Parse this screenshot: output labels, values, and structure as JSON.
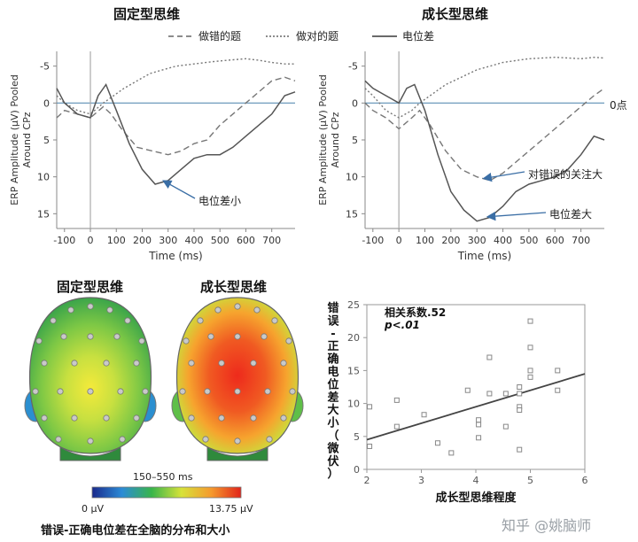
{
  "titles": {
    "left_erp": "固定型思维",
    "right_erp": "成长型思维",
    "left_head": "固定型思维",
    "right_head": "成长型思维"
  },
  "legend": [
    {
      "label": "做错的题",
      "style": "dash"
    },
    {
      "label": "做对的题",
      "style": "dot"
    },
    {
      "label": "电位差",
      "style": "solid"
    }
  ],
  "annotations": {
    "zero_point": "0点",
    "left_small": "电位差小",
    "right_attention": "对错误的关注大",
    "right_large": "电位差大"
  },
  "head_range": {
    "window": "150–550 ms",
    "min": "0 μV",
    "max": "13.75 μV"
  },
  "head_caption": "错误-正确电位差在全脑的分布和大小",
  "scatter_stats": {
    "line1": "相关系数.52",
    "line2": "p<.01"
  },
  "watermark": "知乎 @姚脑师",
  "colors": {
    "zero_line": "#5b8fb5",
    "axis": "#888888",
    "curve": "#666666",
    "arrow": "#3a6ea5"
  },
  "chart_data": [
    {
      "type": "line",
      "title": "固定型思维",
      "xlabel": "Time (ms)",
      "ylabel": "ERP Amplitude (μV) Pooled Around CPz",
      "xlim": [
        -130,
        790
      ],
      "ylim": [
        -7,
        17
      ],
      "y_inverted": true,
      "x_ticks": [
        -100,
        0,
        100,
        200,
        300,
        400,
        500,
        600,
        700
      ],
      "y_ticks": [
        -5,
        0,
        5,
        10,
        15
      ],
      "series": [
        {
          "name": "做错的题",
          "style": "dash",
          "x": [
            -130,
            -100,
            -50,
            0,
            50,
            80,
            120,
            180,
            240,
            300,
            350,
            400,
            450,
            500,
            550,
            600,
            650,
            700,
            750,
            790
          ],
          "y": [
            2,
            1,
            1.5,
            2,
            0.5,
            1.5,
            3.5,
            6,
            6.5,
            7,
            6.5,
            5.5,
            5,
            3,
            1.5,
            0,
            -1.5,
            -3,
            -3.5,
            -3
          ]
        },
        {
          "name": "做对的题",
          "style": "dot",
          "x": [
            -130,
            -100,
            -50,
            0,
            50,
            90,
            130,
            180,
            230,
            280,
            330,
            400,
            470,
            530,
            600,
            650,
            700,
            750,
            790
          ],
          "y": [
            -1,
            0,
            1,
            1.5,
            0,
            -1,
            -2,
            -3,
            -4,
            -4.5,
            -5,
            -5.3,
            -5.6,
            -5.8,
            -6,
            -5.8,
            -5.5,
            -5.3,
            -5.3
          ]
        },
        {
          "name": "电位差",
          "style": "solid",
          "x": [
            -130,
            -100,
            -50,
            0,
            30,
            60,
            100,
            150,
            200,
            250,
            300,
            350,
            400,
            450,
            500,
            550,
            600,
            650,
            700,
            750,
            790
          ],
          "y": [
            -2,
            0,
            1.5,
            2,
            -1,
            -2.5,
            1,
            5.5,
            9,
            11,
            10.5,
            9,
            7.5,
            7,
            7,
            6,
            4.5,
            3,
            1.5,
            -1,
            -1.5
          ]
        }
      ]
    },
    {
      "type": "line",
      "title": "成长型思维",
      "xlabel": "Time (ms)",
      "ylabel": "ERP Amplitude (μV) Pooled Around CPz",
      "xlim": [
        -130,
        790
      ],
      "ylim": [
        -7,
        17
      ],
      "y_inverted": true,
      "x_ticks": [
        -100,
        0,
        100,
        200,
        300,
        400,
        500,
        600,
        700
      ],
      "y_ticks": [
        -5,
        0,
        5,
        10,
        15
      ],
      "series": [
        {
          "name": "做错的题",
          "style": "dash",
          "x": [
            -130,
            -100,
            -50,
            0,
            50,
            80,
            120,
            180,
            240,
            300,
            350,
            400,
            450,
            500,
            550,
            600,
            650,
            700,
            750,
            790
          ],
          "y": [
            0,
            1,
            2,
            3.5,
            2,
            1,
            3,
            6.5,
            9,
            10,
            10.5,
            9.5,
            8,
            6.5,
            5,
            3.5,
            2,
            0.5,
            -1,
            -2
          ]
        },
        {
          "name": "做对的题",
          "style": "dot",
          "x": [
            -130,
            -100,
            -50,
            0,
            50,
            80,
            120,
            180,
            240,
            300,
            350,
            400,
            500,
            600,
            700,
            750,
            790
          ],
          "y": [
            -2,
            -1,
            1,
            2,
            1,
            0,
            -1,
            -2.5,
            -3.5,
            -4.5,
            -5,
            -5.5,
            -6,
            -6.2,
            -6,
            -6.2,
            -6.1
          ]
        },
        {
          "name": "电位差",
          "style": "solid",
          "x": [
            -130,
            -100,
            -50,
            0,
            30,
            60,
            100,
            150,
            200,
            250,
            300,
            350,
            400,
            450,
            500,
            550,
            600,
            650,
            700,
            750,
            790
          ],
          "y": [
            -3,
            -2,
            -1,
            0,
            -2,
            -2.5,
            1,
            7,
            12,
            14.5,
            16,
            15.5,
            14,
            12,
            11,
            10.5,
            10,
            9,
            7,
            4.5,
            5
          ]
        }
      ]
    },
    {
      "type": "scatter",
      "xlabel": "成长型思维程度",
      "ylabel": "错误-正确电位差大小（微伏）",
      "xlim": [
        2,
        6
      ],
      "ylim": [
        0,
        25
      ],
      "x_ticks": [
        2,
        3,
        4,
        5,
        6
      ],
      "y_ticks": [
        0,
        5,
        10,
        15,
        20,
        25
      ],
      "points": [
        [
          2.05,
          9.5
        ],
        [
          2.05,
          3.5
        ],
        [
          2.55,
          10.5
        ],
        [
          2.55,
          6.5
        ],
        [
          3.05,
          8.3
        ],
        [
          3.3,
          4
        ],
        [
          3.55,
          2.5
        ],
        [
          3.85,
          12
        ],
        [
          4.05,
          7.5
        ],
        [
          4.05,
          6.8
        ],
        [
          4.05,
          4.8
        ],
        [
          4.25,
          17
        ],
        [
          4.25,
          11.5
        ],
        [
          4.55,
          11.5
        ],
        [
          4.55,
          6.5
        ],
        [
          4.8,
          12.5
        ],
        [
          4.8,
          11.5
        ],
        [
          4.8,
          9.5
        ],
        [
          4.8,
          9
        ],
        [
          4.8,
          3
        ],
        [
          5.0,
          22.5
        ],
        [
          5.0,
          18.5
        ],
        [
          5.0,
          15
        ],
        [
          5.0,
          14
        ],
        [
          5.5,
          15
        ],
        [
          5.5,
          12
        ]
      ],
      "fit_line": {
        "x": [
          2,
          6
        ],
        "y": [
          4.5,
          14.5
        ]
      }
    }
  ]
}
